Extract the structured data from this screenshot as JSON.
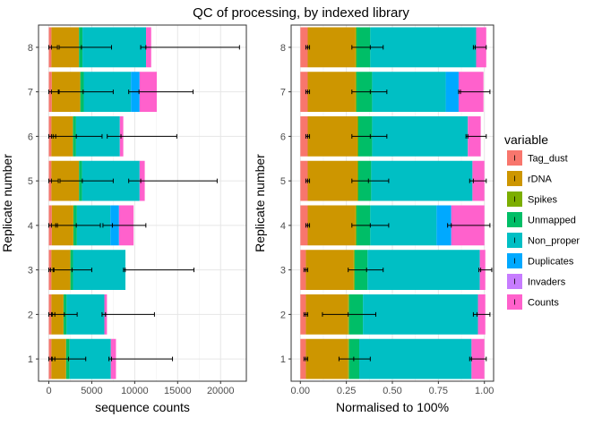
{
  "figure": {
    "title": "QC of processing, by indexed library"
  },
  "legend": {
    "title": "variable"
  },
  "colors": {
    "Tag_dust": "#F8766D",
    "rDNA": "#CD9600",
    "Spikes": "#7CAE00",
    "Unmapped": "#00BE67",
    "Non_proper": "#00BFC4",
    "Duplicates": "#00A9FF",
    "Invaders": "#C77CFF",
    "Counts": "#FF61CC"
  },
  "chart_data": [
    {
      "type": "bar",
      "orientation": "horizontal",
      "stacked": true,
      "title": "",
      "xlabel": "sequence counts",
      "ylabel": "Replicate number",
      "xlim": [
        -1200,
        23000
      ],
      "xticks": [
        0,
        5000,
        10000,
        15000,
        20000
      ],
      "xtick_labels": [
        "0",
        "5000",
        "10000",
        "15000",
        "20000"
      ],
      "categories": [
        "1",
        "2",
        "3",
        "4",
        "5",
        "6",
        "7",
        "8"
      ],
      "grid": true,
      "series": [
        {
          "name": "Tag_dust",
          "values": [
            300,
            300,
            300,
            350,
            300,
            300,
            350,
            300
          ]
        },
        {
          "name": "rDNA",
          "values": [
            1700,
            1400,
            2200,
            2500,
            3200,
            2500,
            3300,
            3200
          ]
        },
        {
          "name": "Spikes",
          "values": [
            20,
            20,
            20,
            20,
            20,
            20,
            20,
            20
          ]
        },
        {
          "name": "Unmapped",
          "values": [
            400,
            350,
            300,
            400,
            350,
            350,
            400,
            400
          ]
        },
        {
          "name": "Non_proper",
          "values": [
            4800,
            4400,
            6100,
            3900,
            6700,
            5100,
            5500,
            7400
          ]
        },
        {
          "name": "Duplicates",
          "values": [
            0,
            0,
            0,
            1000,
            0,
            0,
            1000,
            0
          ]
        },
        {
          "name": "Invaders",
          "values": [
            0,
            0,
            0,
            0,
            0,
            0,
            0,
            0
          ]
        },
        {
          "name": "Counts",
          "values": [
            600,
            300,
            0,
            1700,
            600,
            400,
            2000,
            600
          ]
        }
      ],
      "error_bars": [
        {
          "category": "1",
          "center": 300,
          "lo": 0,
          "hi": 700
        },
        {
          "category": "1",
          "center": 2300,
          "lo": 400,
          "hi": 4300
        },
        {
          "category": "1",
          "center": 7300,
          "lo": 7000,
          "hi": 14400
        },
        {
          "category": "2",
          "center": 300,
          "lo": 0,
          "hi": 700
        },
        {
          "category": "2",
          "center": 1800,
          "lo": 400,
          "hi": 3300
        },
        {
          "category": "2",
          "center": 6600,
          "lo": 6200,
          "hi": 12300
        },
        {
          "category": "3",
          "center": 200,
          "lo": 0,
          "hi": 600
        },
        {
          "category": "3",
          "center": 2700,
          "lo": 500,
          "hi": 5000
        },
        {
          "category": "3",
          "center": 8900,
          "lo": 8700,
          "hi": 16900
        },
        {
          "category": "4",
          "center": 300,
          "lo": 0,
          "hi": 1000
        },
        {
          "category": "4",
          "center": 3200,
          "lo": 800,
          "hi": 6000
        },
        {
          "category": "4",
          "center": 7400,
          "lo": 6300,
          "hi": 11300
        },
        {
          "category": "5",
          "center": 300,
          "lo": 0,
          "hi": 1100
        },
        {
          "category": "5",
          "center": 3900,
          "lo": 1300,
          "hi": 7500
        },
        {
          "category": "5",
          "center": 10700,
          "lo": 9300,
          "hi": 19600
        },
        {
          "category": "6",
          "center": 300,
          "lo": 0,
          "hi": 800
        },
        {
          "category": "6",
          "center": 3200,
          "lo": 500,
          "hi": 6200
        },
        {
          "category": "6",
          "center": 8400,
          "lo": 6800,
          "hi": 14900
        },
        {
          "category": "7",
          "center": 300,
          "lo": 0,
          "hi": 1100
        },
        {
          "category": "7",
          "center": 4000,
          "lo": 1200,
          "hi": 7500
        },
        {
          "category": "7",
          "center": 10500,
          "lo": 9300,
          "hi": 16800
        },
        {
          "category": "8",
          "center": 300,
          "lo": 0,
          "hi": 1000
        },
        {
          "category": "8",
          "center": 3800,
          "lo": 1200,
          "hi": 7300
        },
        {
          "category": "8",
          "center": 11300,
          "lo": 10700,
          "hi": 22200
        }
      ]
    },
    {
      "type": "bar",
      "orientation": "horizontal",
      "stacked": true,
      "title": "",
      "xlabel": "Normalised to 100%",
      "ylabel": "Replicate number",
      "xlim": [
        -0.05,
        1.05
      ],
      "xticks": [
        0,
        0.25,
        0.5,
        0.75,
        1
      ],
      "xtick_labels": [
        "0.00",
        "0.25",
        "0.50",
        "0.75",
        "1.00"
      ],
      "categories": [
        "1",
        "2",
        "3",
        "4",
        "5",
        "6",
        "7",
        "8"
      ],
      "grid": true,
      "series": [
        {
          "name": "Tag_dust",
          "values": [
            0.03,
            0.03,
            0.03,
            0.04,
            0.04,
            0.04,
            0.04,
            0.04
          ]
        },
        {
          "name": "rDNA",
          "values": [
            0.23,
            0.23,
            0.26,
            0.26,
            0.27,
            0.27,
            0.26,
            0.26
          ]
        },
        {
          "name": "Spikes",
          "values": [
            0.005,
            0.005,
            0.005,
            0.005,
            0.005,
            0.005,
            0.005,
            0.005
          ]
        },
        {
          "name": "Unmapped",
          "values": [
            0.055,
            0.075,
            0.07,
            0.075,
            0.07,
            0.075,
            0.085,
            0.075
          ]
        },
        {
          "name": "Non_proper",
          "values": [
            0.61,
            0.625,
            0.61,
            0.36,
            0.55,
            0.52,
            0.4,
            0.575
          ]
        },
        {
          "name": "Duplicates",
          "values": [
            0,
            0,
            0,
            0.08,
            0,
            0,
            0.07,
            0
          ]
        },
        {
          "name": "Invaders",
          "values": [
            0,
            0,
            0,
            0,
            0,
            0,
            0,
            0
          ]
        },
        {
          "name": "Counts",
          "values": [
            0.07,
            0.04,
            0.03,
            0.18,
            0.065,
            0.07,
            0.135,
            0.055
          ]
        }
      ],
      "error_bars": [
        {
          "category": "1",
          "center": 0.03,
          "lo": 0.02,
          "hi": 0.04
        },
        {
          "category": "1",
          "center": 0.29,
          "lo": 0.21,
          "hi": 0.38
        },
        {
          "category": "1",
          "center": 0.93,
          "lo": 0.92,
          "hi": 1.01
        },
        {
          "category": "2",
          "center": 0.03,
          "lo": 0.02,
          "hi": 0.04
        },
        {
          "category": "2",
          "center": 0.26,
          "lo": 0.12,
          "hi": 0.41
        },
        {
          "category": "2",
          "center": 0.96,
          "lo": 0.94,
          "hi": 1.03
        },
        {
          "category": "3",
          "center": 0.03,
          "lo": 0.02,
          "hi": 0.04
        },
        {
          "category": "3",
          "center": 0.36,
          "lo": 0.26,
          "hi": 0.45
        },
        {
          "category": "3",
          "center": 0.98,
          "lo": 0.97,
          "hi": 1.04
        },
        {
          "category": "4",
          "center": 0.04,
          "lo": 0.03,
          "hi": 0.05
        },
        {
          "category": "4",
          "center": 0.38,
          "lo": 0.28,
          "hi": 0.48
        },
        {
          "category": "4",
          "center": 0.82,
          "lo": 0.8,
          "hi": 1.03
        },
        {
          "category": "5",
          "center": 0.04,
          "lo": 0.03,
          "hi": 0.05
        },
        {
          "category": "5",
          "center": 0.37,
          "lo": 0.28,
          "hi": 0.48
        },
        {
          "category": "5",
          "center": 0.94,
          "lo": 0.92,
          "hi": 1.01
        },
        {
          "category": "6",
          "center": 0.04,
          "lo": 0.03,
          "hi": 0.05
        },
        {
          "category": "6",
          "center": 0.38,
          "lo": 0.28,
          "hi": 0.47
        },
        {
          "category": "6",
          "center": 0.91,
          "lo": 0.9,
          "hi": 1.01
        },
        {
          "category": "7",
          "center": 0.04,
          "lo": 0.03,
          "hi": 0.05
        },
        {
          "category": "7",
          "center": 0.38,
          "lo": 0.28,
          "hi": 0.47
        },
        {
          "category": "7",
          "center": 0.87,
          "lo": 0.86,
          "hi": 1.03
        },
        {
          "category": "8",
          "center": 0.04,
          "lo": 0.03,
          "hi": 0.05
        },
        {
          "category": "8",
          "center": 0.38,
          "lo": 0.28,
          "hi": 0.45
        },
        {
          "category": "8",
          "center": 0.95,
          "lo": 0.94,
          "hi": 1.01
        }
      ]
    }
  ]
}
